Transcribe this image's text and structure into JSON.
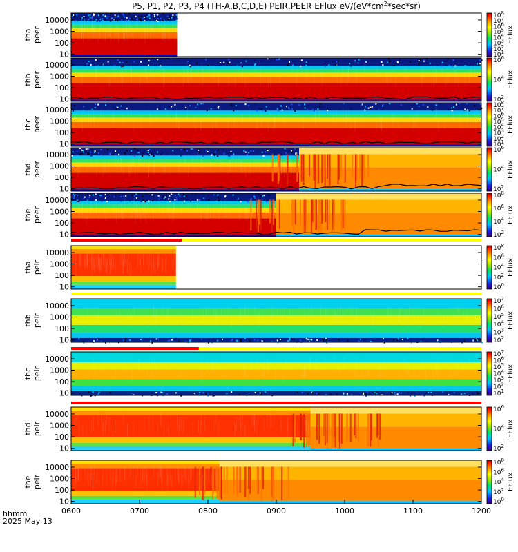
{
  "chart_data": {
    "type": "heatmap",
    "title": "P5, P1, P2, P3, P4 (TH-A,B,C,D,E) PEIR,PEER EFlux eV/(eV*cm",
    "title_sup": "2",
    "title_tail": "*sec*sr)",
    "x_label": "hhmm",
    "date_label": "2025 May 13",
    "x_ticks": [
      "0600",
      "0700",
      "0800",
      "0900",
      "1000",
      "1100",
      "1200"
    ],
    "x_range": [
      "0600",
      "1200"
    ],
    "y_scale": "log",
    "y_ticks": [
      "10",
      "100",
      "1000",
      "10000"
    ],
    "colorbar_label": "EFlux",
    "panels": [
      {
        "probe": "tha",
        "species": "peer",
        "data_end_hhmm": "0733",
        "cbar_exp": [
          1,
          2,
          3,
          4,
          5,
          6,
          7,
          8
        ],
        "texture": "electron",
        "hot_transition_hhmm": null,
        "boundary": false
      },
      {
        "probe": "thb",
        "species": "peer",
        "data_end_hhmm": "1200",
        "cbar_exp": [
          2,
          4,
          6
        ],
        "texture": "electron",
        "hot_transition_hhmm": null,
        "boundary": true
      },
      {
        "probe": "thc",
        "species": "peer",
        "data_end_hhmm": "1200",
        "cbar_exp": [
          1,
          2,
          3,
          4,
          5,
          6,
          7,
          8
        ],
        "texture": "electron",
        "hot_transition_hhmm": null,
        "boundary": true
      },
      {
        "probe": "thd",
        "species": "peer",
        "data_end_hhmm": "1200",
        "cbar_exp": [
          2,
          4,
          6
        ],
        "texture": "electron",
        "hot_transition_hhmm": "0920",
        "boundary": true
      },
      {
        "probe": "the",
        "species": "peer",
        "data_end_hhmm": "1200",
        "cbar_exp": [
          2,
          4,
          6,
          8
        ],
        "texture": "electron",
        "hot_transition_hhmm": "0900",
        "boundary": true
      },
      {
        "probe": "tha",
        "species": "peir",
        "data_end_hhmm": "0732",
        "cbar_exp": [
          0,
          2,
          4,
          6,
          8
        ],
        "texture": "ion_hot",
        "hot_transition_hhmm": null,
        "boundary": false
      },
      {
        "probe": "thb",
        "species": "peir",
        "data_end_hhmm": "1200",
        "cbar_exp": [
          2,
          3,
          4,
          5,
          6,
          7
        ],
        "texture": "ion_cool",
        "hot_transition_hhmm": null,
        "boundary": false
      },
      {
        "probe": "thc",
        "species": "peir",
        "data_end_hhmm": "1200",
        "cbar_exp": [
          1,
          2,
          3,
          4,
          5,
          6,
          7
        ],
        "texture": "ion_warm",
        "hot_transition_hhmm": null,
        "boundary": false
      },
      {
        "probe": "thd",
        "species": "peir",
        "data_end_hhmm": "1200",
        "cbar_exp": [
          2,
          4,
          6
        ],
        "texture": "ion_hot",
        "hot_transition_hhmm": "0930",
        "boundary": false
      },
      {
        "probe": "the",
        "species": "peir",
        "data_end_hhmm": "1200",
        "cbar_exp": [
          0,
          2,
          4,
          6,
          8
        ],
        "texture": "ion_hot",
        "hot_transition_hhmm": "0810",
        "boundary": false
      }
    ],
    "mode_bars": [
      {
        "after_panel": 4,
        "segments": [
          {
            "from": "0600",
            "to": "0737",
            "color": "#ff0000"
          },
          {
            "from": "0737",
            "to": "1200",
            "color": "#ffff00"
          }
        ]
      },
      {
        "after_panel": 5,
        "segments": [
          {
            "from": "0600",
            "to": "1200",
            "color": "#ffff00"
          }
        ]
      },
      {
        "after_panel": 7,
        "segments": [
          {
            "from": "0600",
            "to": "0752",
            "color": "#ff0000"
          },
          {
            "from": "0752",
            "to": "1200",
            "color": "#ffff00"
          }
        ]
      },
      {
        "after_panel": 8,
        "segments": [
          {
            "from": "0600",
            "to": "1200",
            "color": "#ff0000"
          }
        ]
      }
    ]
  }
}
